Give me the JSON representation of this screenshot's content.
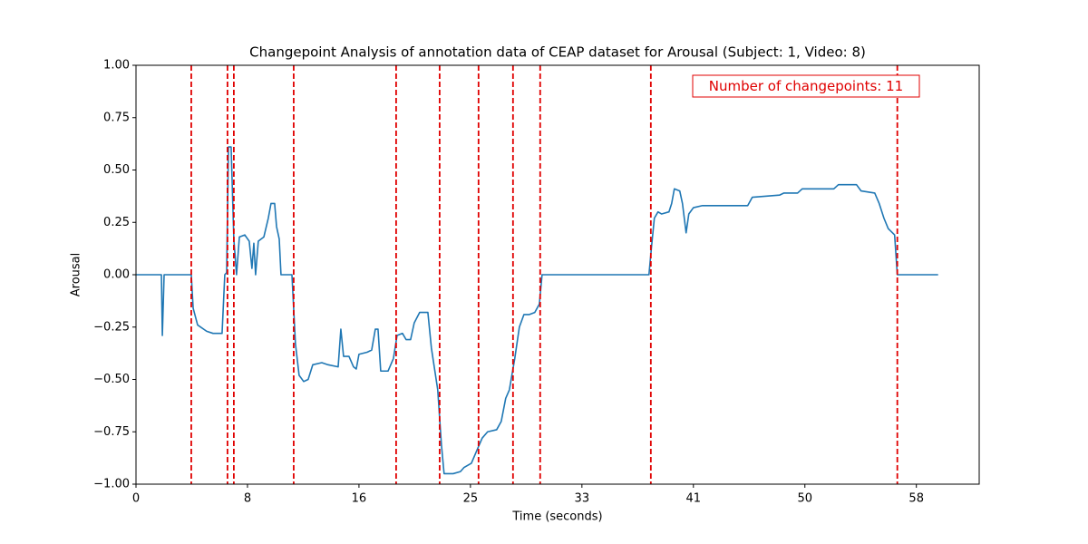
{
  "chart_data": {
    "type": "line",
    "title": "Changepoint Analysis of annotation data of CEAP dataset for Arousal (Subject: 1, Video: 8)",
    "x_label": "Time (seconds)",
    "y_label": "Arousal",
    "annotation": "Number of changepoints: 11",
    "x": [
      0,
      1.88,
      1.95,
      2.08,
      4.09,
      4.23,
      4.56,
      5.23,
      5.7,
      6.37,
      6.57,
      6.71,
      6.84,
      7.04,
      7.24,
      7.44,
      7.65,
      8.05,
      8.38,
      8.58,
      8.72,
      8.85,
      9.05,
      9.46,
      9.79,
      9.99,
      10.26,
      10.4,
      10.6,
      10.73,
      11.54,
      11.8,
      12.07,
      12.41,
      12.74,
      13.08,
      13.75,
      14.22,
      14.96,
      15.16,
      15.36,
      15.76,
      16.1,
      16.3,
      16.5,
      17.1,
      17.44,
      17.71,
      17.91,
      18.11,
      18.65,
      19.05,
      19.32,
      19.72,
      19.99,
      20.32,
      20.59,
      20.99,
      21.6,
      21.86,
      22.33,
      22.6,
      22.8,
      23.47,
      24.01,
      24.28,
      24.82,
      25.35,
      25.62,
      26.02,
      26.69,
      27.03,
      27.36,
      27.63,
      28.03,
      28.37,
      28.71,
      29.11,
      29.51,
      29.85,
      30.05,
      37.96,
      38.16,
      38.36,
      38.63,
      38.9,
      39.44,
      39.64,
      39.84,
      40.24,
      40.44,
      40.71,
      40.91,
      41.25,
      41.92,
      42.92,
      45.27,
      45.61,
      47.62,
      47.95,
      48.96,
      49.3,
      51.64,
      51.98,
      53.32,
      53.66,
      54.67,
      55.0,
      55.35,
      55.67,
      56.14,
      56.34,
      59.36
    ],
    "series": [
      {
        "name": "Arousal",
        "color": "#1f77b4",
        "values": [
          0,
          0,
          -0.29,
          0,
          0,
          -0.16,
          -0.24,
          -0.27,
          -0.28,
          -0.28,
          0,
          0.01,
          0.61,
          0.61,
          0.17,
          0,
          0.18,
          0.19,
          0.16,
          0.03,
          0.15,
          0,
          0.16,
          0.18,
          0.27,
          0.34,
          0.34,
          0.23,
          0.17,
          0,
          0,
          -0.33,
          -0.48,
          -0.51,
          -0.5,
          -0.43,
          -0.42,
          -0.43,
          -0.44,
          -0.26,
          -0.39,
          -0.39,
          -0.44,
          -0.45,
          -0.38,
          -0.37,
          -0.36,
          -0.26,
          -0.26,
          -0.46,
          -0.46,
          -0.4,
          -0.29,
          -0.28,
          -0.31,
          -0.31,
          -0.23,
          -0.18,
          -0.18,
          -0.35,
          -0.55,
          -0.81,
          -0.95,
          -0.95,
          -0.94,
          -0.92,
          -0.9,
          -0.82,
          -0.78,
          -0.75,
          -0.74,
          -0.7,
          -0.59,
          -0.55,
          -0.4,
          -0.25,
          -0.19,
          -0.19,
          -0.18,
          -0.14,
          0,
          0,
          0.14,
          0.27,
          0.3,
          0.29,
          0.3,
          0.34,
          0.41,
          0.4,
          0.34,
          0.2,
          0.29,
          0.32,
          0.33,
          0.33,
          0.33,
          0.37,
          0.38,
          0.39,
          0.39,
          0.41,
          0.41,
          0.43,
          0.43,
          0.4,
          0.39,
          0.34,
          0.27,
          0.22,
          0.19,
          0,
          0
        ]
      }
    ],
    "changepoints": {
      "color": "#e00000",
      "x": [
        4.09,
        6.77,
        7.24,
        11.67,
        19.25,
        22.47,
        25.35,
        27.9,
        29.91,
        38.1,
        56.34
      ]
    },
    "xlim": [
      0,
      62.4
    ],
    "ylim": [
      -1,
      1
    ],
    "xticks": [
      0,
      {
        "value": 8.25,
        "label": "8"
      },
      {
        "value": 16.5,
        "label": "16"
      },
      {
        "value": 24.75,
        "label": "25"
      },
      33,
      {
        "value": 41.25,
        "label": "41"
      },
      {
        "value": 49.5,
        "label": "50"
      },
      {
        "value": 57.75,
        "label": "58"
      }
    ],
    "yticks": [
      {
        "value": -1,
        "label": "−1.00"
      },
      {
        "value": -0.75,
        "label": "−0.75"
      },
      {
        "value": -0.5,
        "label": "−0.50"
      },
      {
        "value": -0.25,
        "label": "−0.25"
      },
      {
        "value": 0,
        "label": "0.00"
      },
      {
        "value": 0.25,
        "label": "0.25"
      },
      {
        "value": 0.5,
        "label": "0.50"
      },
      {
        "value": 0.75,
        "label": "0.75"
      },
      {
        "value": 1,
        "label": "1.00"
      }
    ]
  }
}
